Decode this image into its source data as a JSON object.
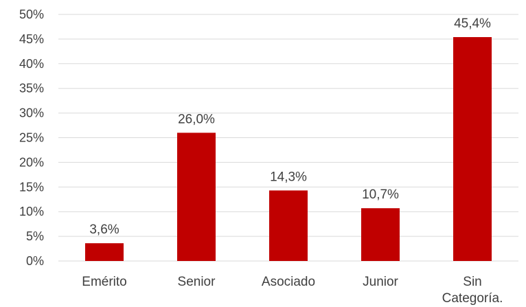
{
  "chart_data": {
    "type": "bar",
    "categories": [
      [
        "Emérito"
      ],
      [
        "Senior"
      ],
      [
        "Asociado"
      ],
      [
        "Junior"
      ],
      [
        "Sin",
        "Categoría."
      ]
    ],
    "values": [
      3.6,
      26.0,
      14.3,
      10.7,
      45.4
    ],
    "data_labels": [
      "3,6%",
      "26,0%",
      "14,3%",
      "10,7%",
      "45,4%"
    ],
    "yticks": [
      "0%",
      "5%",
      "10%",
      "15%",
      "20%",
      "25%",
      "30%",
      "35%",
      "40%",
      "45%",
      "50%"
    ],
    "ylim": [
      0,
      50
    ],
    "grid": true,
    "legend": "none",
    "bar_color": "#c00000"
  }
}
